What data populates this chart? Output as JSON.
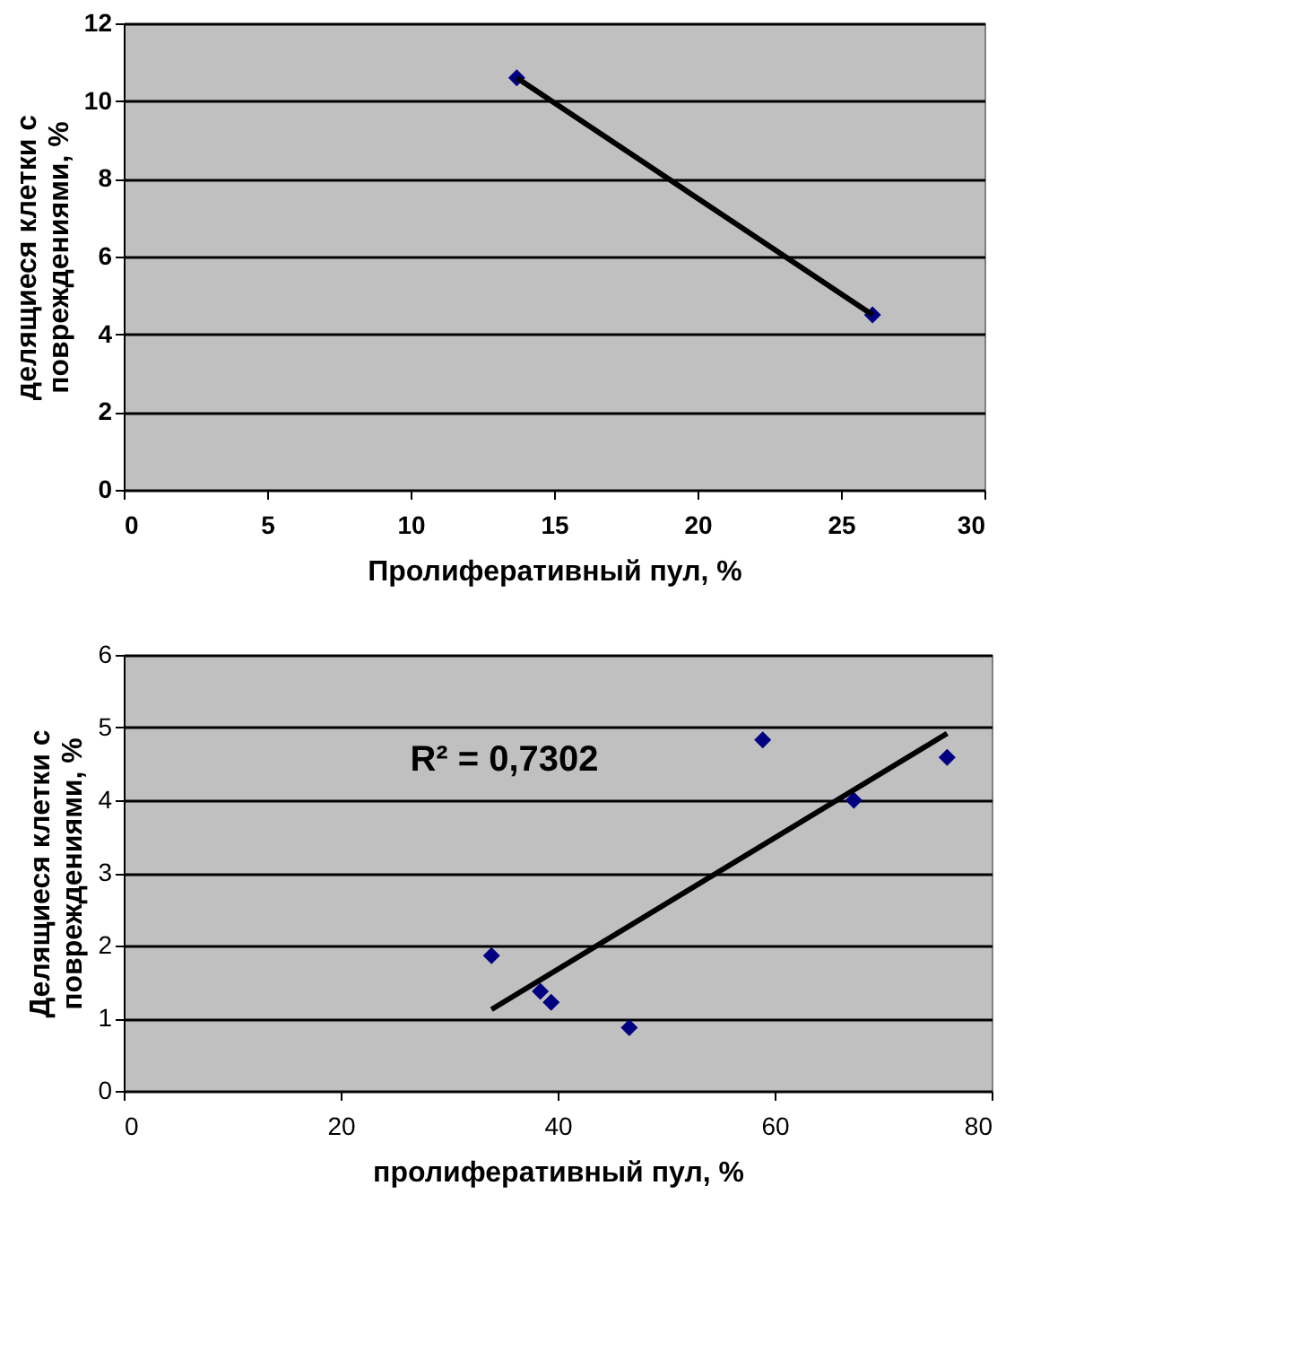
{
  "chart_data": [
    {
      "type": "scatter",
      "xlabel": "Пролиферативный пул, %",
      "ylabel": "делящиеся клетки с повреждениями, %",
      "xlim": [
        0,
        30
      ],
      "xticks": [
        0,
        5,
        10,
        15,
        20,
        25,
        30
      ],
      "ylim": [
        0,
        12
      ],
      "yticks": [
        0,
        2,
        4,
        6,
        8,
        10,
        12
      ],
      "grid": "y",
      "marker": "diamond",
      "series": [
        {
          "type": "scatter",
          "color": "#000080",
          "x": [
            13.7,
            26.1
          ],
          "values": [
            10.6,
            4.5
          ]
        },
        {
          "type": "line",
          "color": "#000000",
          "marker": "none",
          "x": [
            13.7,
            26.1
          ],
          "values": [
            10.6,
            4.5
          ]
        }
      ]
    },
    {
      "type": "scatter",
      "xlabel": "пролиферативный пул, %",
      "ylabel": "Делящиеся клетки с повреждениями, %",
      "xlim": [
        0,
        80
      ],
      "xticks": [
        0,
        20,
        40,
        60,
        80
      ],
      "ylim": [
        0,
        6
      ],
      "yticks": [
        0,
        1,
        2,
        3,
        4,
        5,
        6
      ],
      "grid": "y",
      "marker": "diamond",
      "annotations": [
        "R² = 0,7302"
      ],
      "series": [
        {
          "type": "scatter",
          "color": "#000080",
          "x": [
            33.9,
            38.4,
            39.4,
            46.6,
            58.9,
            67.3,
            75.9
          ],
          "values": [
            1.86,
            1.37,
            1.22,
            0.87,
            4.83,
            4.0,
            4.59
          ]
        },
        {
          "type": "line",
          "color": "#000000",
          "marker": "none",
          "x": [
            33.9,
            75.9
          ],
          "values": [
            1.12,
            4.92
          ]
        }
      ]
    }
  ]
}
